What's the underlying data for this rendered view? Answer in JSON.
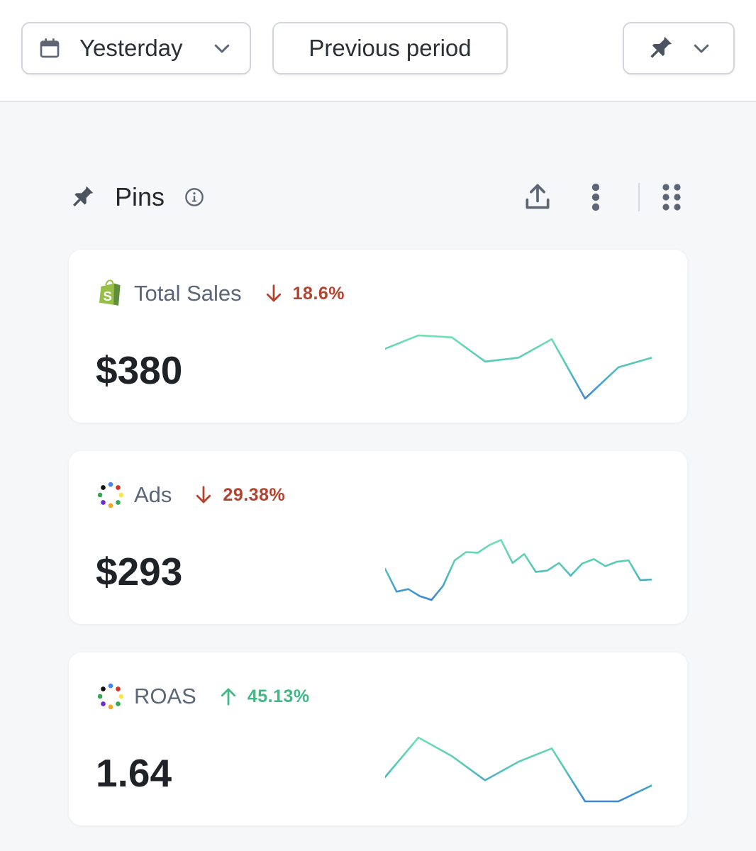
{
  "toolbar": {
    "date_label": "Yesterday",
    "compare_label": "Previous period"
  },
  "section": {
    "title": "Pins"
  },
  "colors": {
    "down": "#b3432e",
    "up": "#3fb985",
    "spark_top": "#6fe0b3",
    "spark_bottom": "#3d86d8"
  },
  "cards": [
    {
      "name": "Total Sales",
      "source_icon": "shopify-icon",
      "trend": "down",
      "change": "18.6%",
      "value": "$380",
      "sparkline": [
        0.78,
        0.99,
        0.96,
        0.58,
        0.64,
        0.93,
        0.0,
        0.49,
        0.64
      ]
    },
    {
      "name": "Ads",
      "source_icon": "multi-channel-icon",
      "trend": "down",
      "change": "29.38%",
      "value": "$293",
      "sparkline": [
        0.49,
        0.13,
        0.17,
        0.06,
        0.0,
        0.22,
        0.62,
        0.75,
        0.74,
        0.86,
        0.94,
        0.58,
        0.72,
        0.44,
        0.46,
        0.58,
        0.38,
        0.57,
        0.64,
        0.53,
        0.6,
        0.62,
        0.31,
        0.32
      ]
    },
    {
      "name": "ROAS",
      "source_icon": "multi-channel-icon",
      "trend": "up",
      "change": "45.13%",
      "value": "1.64",
      "sparkline": [
        0.38,
        1.0,
        0.71,
        0.33,
        0.62,
        0.83,
        0.0,
        0.0,
        0.25
      ]
    }
  ]
}
